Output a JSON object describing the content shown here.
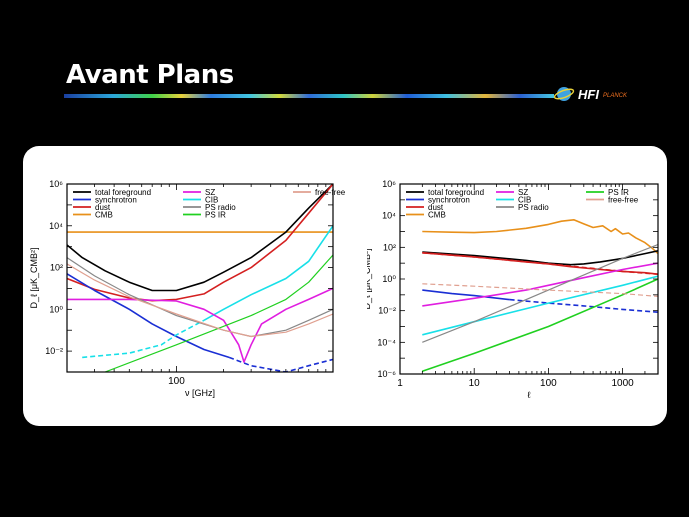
{
  "slide": {
    "title": "Avant Plans"
  },
  "logo": {
    "text": "HFI",
    "subtext": "PLANCK",
    "icon": "planck-satellite-icon"
  },
  "chart_data": [
    {
      "type": "line",
      "xscale": "log",
      "yscale": "log",
      "xlabel": "ν [GHz]",
      "ylabel": "D_ℓ [μK_CMB²]",
      "xlim": [
        20,
        1000
      ],
      "ylim": [
        0.001,
        1000000
      ],
      "xticks": [
        {
          "v": 100,
          "label": "100"
        }
      ],
      "yticks": [
        {
          "v": 1000000,
          "label": "10⁶"
        },
        {
          "v": 10000,
          "label": "10⁴"
        },
        {
          "v": 100,
          "label": "10²"
        },
        {
          "v": 1,
          "label": "10⁰"
        },
        {
          "v": 0.01,
          "label": "10⁻²"
        }
      ],
      "legend_position": "top",
      "legend": [
        {
          "label": "total foreground",
          "color": "#000000",
          "col": 0,
          "row": 0
        },
        {
          "label": "synchrotron",
          "color": "#1a2fd4",
          "col": 0,
          "row": 1
        },
        {
          "label": "dust",
          "color": "#d42020",
          "col": 0,
          "row": 2
        },
        {
          "label": "CMB",
          "color": "#e8901a",
          "col": 0,
          "row": 3
        },
        {
          "label": "SZ",
          "color": "#e01ee0",
          "col": 1,
          "row": 0
        },
        {
          "label": "CIB",
          "color": "#18e0e8",
          "col": 1,
          "row": 1
        },
        {
          "label": "PS radio",
          "color": "#888888",
          "col": 1,
          "row": 2
        },
        {
          "label": "PS IR",
          "color": "#20d020",
          "col": 1,
          "row": 3
        },
        {
          "label": "free-free",
          "color": "#e0a090",
          "col": 2,
          "row": 0
        }
      ],
      "series": [
        {
          "color": "#e8901a",
          "width": 1.6,
          "x": [
            20,
            1000
          ],
          "y": [
            5000,
            5000
          ]
        },
        {
          "color": "#000000",
          "width": 1.6,
          "x": [
            20,
            25,
            35,
            50,
            70,
            100,
            150,
            200,
            300,
            500,
            700,
            1000
          ],
          "y": [
            1200,
            300,
            70,
            20,
            8,
            8,
            20,
            60,
            300,
            5000,
            70000,
            1000000
          ]
        },
        {
          "color": "#d42020",
          "width": 1.6,
          "x": [
            20,
            30,
            50,
            70,
            100,
            150,
            200,
            300,
            500,
            700,
            1000
          ],
          "y": [
            30,
            9,
            3.5,
            2.6,
            3,
            5.5,
            20,
            100,
            2000,
            40000,
            1000000
          ]
        },
        {
          "color": "#1a2fd4",
          "width": 1.6,
          "x": [
            20,
            30,
            50,
            70,
            100,
            150,
            217
          ],
          "y": [
            50,
            8,
            1,
            0.2,
            0.05,
            0.012,
            0.005
          ]
        },
        {
          "color": "#1a2fd4",
          "width": 1.6,
          "dashed": true,
          "x": [
            217,
            300,
            500,
            700,
            1000
          ],
          "y": [
            0.005,
            0.002,
            0.001,
            0.002,
            0.004
          ]
        },
        {
          "color": "#18e0e8",
          "width": 1.6,
          "dashed": true,
          "x": [
            25,
            50,
            80,
            100,
            150
          ],
          "y": [
            0.005,
            0.008,
            0.02,
            0.06,
            0.3
          ]
        },
        {
          "color": "#18e0e8",
          "width": 1.6,
          "x": [
            150,
            200,
            300,
            500,
            700,
            1000
          ],
          "y": [
            0.3,
            1,
            5,
            30,
            200,
            10000
          ]
        },
        {
          "color": "#e01ee0",
          "width": 1.6,
          "x": [
            20,
            50,
            100,
            150,
            200,
            250,
            270,
            300,
            350,
            500,
            700,
            1000
          ],
          "y": [
            3,
            3,
            2.5,
            1,
            0.3,
            0.02,
            0.003,
            0.02,
            0.2,
            1,
            3,
            10
          ]
        },
        {
          "color": "#888888",
          "width": 1.2,
          "x": [
            20,
            30,
            50,
            100,
            200,
            300,
            500,
            700,
            1000
          ],
          "y": [
            300,
            40,
            5,
            0.5,
            0.1,
            0.05,
            0.1,
            0.3,
            1
          ]
        },
        {
          "color": "#20d020",
          "width": 1.2,
          "x": [
            35,
            100,
            300,
            500,
            700,
            1000
          ],
          "y": [
            0.001,
            0.02,
            0.5,
            3,
            20,
            400
          ]
        },
        {
          "color": "#e0a090",
          "width": 1.2,
          "x": [
            20,
            30,
            50,
            100,
            200,
            300,
            500,
            700,
            1000
          ],
          "y": [
            150,
            25,
            4,
            0.6,
            0.1,
            0.05,
            0.08,
            0.2,
            0.6
          ]
        }
      ]
    },
    {
      "type": "line",
      "xscale": "log",
      "yscale": "log",
      "xlabel": "ℓ",
      "ylabel": "D_ℓ [μK_CMB²]",
      "xlim": [
        1,
        3000
      ],
      "ylim": [
        1e-06,
        1000000
      ],
      "xticks": [
        {
          "v": 1,
          "label": "1"
        },
        {
          "v": 10,
          "label": "10"
        },
        {
          "v": 100,
          "label": "100"
        },
        {
          "v": 1000,
          "label": "1000"
        }
      ],
      "yticks": [
        {
          "v": 1000000,
          "label": "10⁶"
        },
        {
          "v": 10000,
          "label": "10⁴"
        },
        {
          "v": 100,
          "label": "10²"
        },
        {
          "v": 1,
          "label": "10⁰"
        },
        {
          "v": 0.01,
          "label": "10⁻²"
        },
        {
          "v": 0.0001,
          "label": "10⁻⁴"
        },
        {
          "v": 1e-06,
          "label": "10⁻⁶"
        }
      ],
      "legend_position": "top",
      "legend": [
        {
          "label": "total foreground",
          "color": "#000000",
          "col": 0,
          "row": 0
        },
        {
          "label": "synchrotron",
          "color": "#1a2fd4",
          "col": 0,
          "row": 1
        },
        {
          "label": "dust",
          "color": "#d42020",
          "col": 0,
          "row": 2
        },
        {
          "label": "CMB",
          "color": "#e8901a",
          "col": 0,
          "row": 3
        },
        {
          "label": "SZ",
          "color": "#e01ee0",
          "col": 1,
          "row": 0
        },
        {
          "label": "CIB",
          "color": "#18e0e8",
          "col": 1,
          "row": 1
        },
        {
          "label": "PS radio",
          "color": "#888888",
          "col": 1,
          "row": 2
        },
        {
          "label": "PS IR",
          "color": "#20d020",
          "col": 2,
          "row": 0
        },
        {
          "label": "free-free",
          "color": "#e0a090",
          "col": 2,
          "row": 1
        }
      ],
      "series": [
        {
          "color": "#e8901a",
          "width": 1.6,
          "x": [
            2,
            5,
            10,
            20,
            50,
            100,
            150,
            220,
            300,
            400,
            540,
            700,
            800,
            1000,
            1200,
            1500,
            2000,
            2500,
            3000
          ],
          "y": [
            1000,
            900,
            850,
            1000,
            1600,
            2800,
            4500,
            5500,
            3000,
            1800,
            2300,
            1000,
            1500,
            700,
            800,
            400,
            200,
            90,
            40
          ]
        },
        {
          "color": "#000000",
          "width": 1.6,
          "x": [
            2,
            10,
            50,
            100,
            200,
            300,
            500,
            1000,
            2000,
            3000
          ],
          "y": [
            50,
            30,
            15,
            10,
            8,
            9,
            12,
            20,
            40,
            60
          ]
        },
        {
          "color": "#d42020",
          "width": 1.6,
          "x": [
            2,
            10,
            50,
            100,
            200,
            500,
            1000,
            2000,
            3000
          ],
          "y": [
            45,
            25,
            12,
            9,
            6,
            4,
            3,
            2.5,
            2
          ]
        },
        {
          "color": "#d42020",
          "width": 1.6,
          "dashed": true,
          "x": [
            2,
            10,
            100,
            1000,
            3000
          ],
          "y": [
            45,
            25,
            9,
            3,
            2
          ]
        },
        {
          "color": "#1a2fd4",
          "width": 1.6,
          "x": [
            2,
            5,
            10,
            30
          ],
          "y": [
            0.2,
            0.12,
            0.09,
            0.05
          ]
        },
        {
          "color": "#1a2fd4",
          "width": 1.6,
          "dashed": true,
          "x": [
            30,
            100,
            300,
            1000,
            3000
          ],
          "y": [
            0.05,
            0.03,
            0.02,
            0.012,
            0.008
          ]
        },
        {
          "color": "#e01ee0",
          "width": 1.6,
          "x": [
            2,
            10,
            50,
            100,
            300,
            1000,
            3000
          ],
          "y": [
            0.02,
            0.06,
            0.2,
            0.4,
            1.2,
            4,
            10
          ]
        },
        {
          "color": "#18e0e8",
          "width": 1.6,
          "x": [
            2,
            10,
            100,
            1000,
            3000
          ],
          "y": [
            0.0003,
            0.002,
            0.03,
            0.4,
            1.5
          ]
        },
        {
          "color": "#888888",
          "width": 1.2,
          "x": [
            2,
            10,
            100,
            1000,
            3000
          ],
          "y": [
            0.0001,
            0.002,
            0.2,
            20,
            150
          ]
        },
        {
          "color": "#20d020",
          "width": 1.6,
          "x": [
            2,
            10,
            100,
            1000,
            3000
          ],
          "y": [
            1.5e-06,
            2e-05,
            0.001,
            0.1,
            1
          ]
        },
        {
          "color": "#e0a090",
          "width": 1.2,
          "dashed": true,
          "x": [
            2,
            10,
            100,
            1000,
            3000
          ],
          "y": [
            0.5,
            0.35,
            0.2,
            0.12,
            0.08
          ]
        }
      ]
    }
  ]
}
